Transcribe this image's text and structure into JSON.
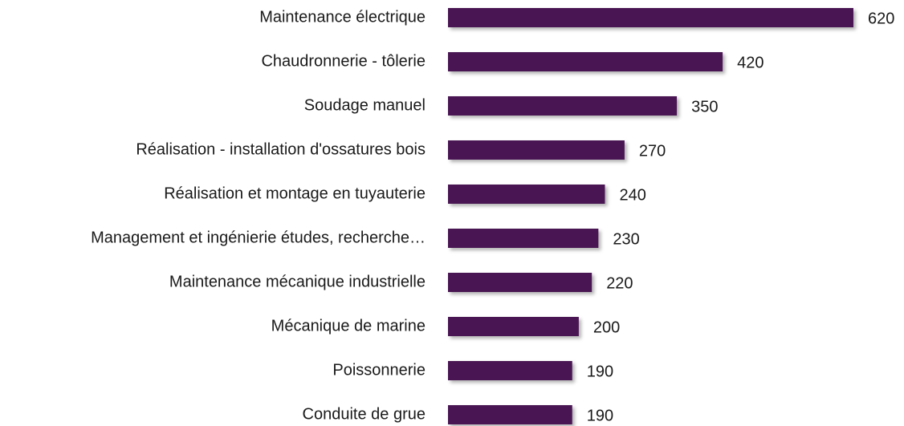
{
  "chart_data": {
    "type": "bar",
    "categories": [
      "Maintenance électrique",
      "Chaudronnerie - tôlerie",
      "Soudage manuel",
      "Réalisation - installation d'ossatures bois",
      "Réalisation et montage en tuyauterie",
      "Management et ingénierie études, recherche…",
      "Maintenance mécanique industrielle",
      "Mécanique de marine",
      "Poissonnerie",
      "Conduite de grue"
    ],
    "values": [
      620,
      420,
      350,
      270,
      240,
      230,
      220,
      200,
      190,
      190
    ],
    "color": "#4a1353"
  }
}
